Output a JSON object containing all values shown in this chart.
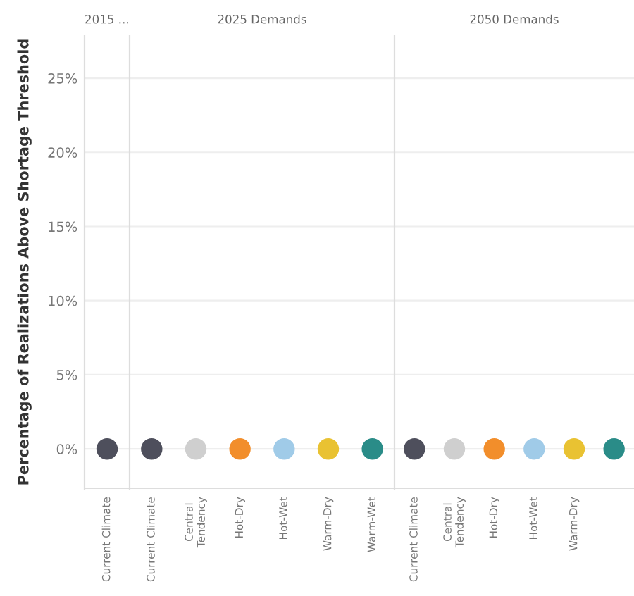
{
  "chart_data": [
    {
      "type": "scatter",
      "title": "2015 ...",
      "ylabel": "Percentage of Realizations Above Shortage Threshold",
      "categories": [
        "Current Climate"
      ],
      "values": [
        0
      ],
      "colors": [
        "#4e4f5c"
      ],
      "ylim": [
        -2.7,
        27.9
      ],
      "yticks": [
        {
          "value": 0,
          "label": "0%"
        },
        {
          "value": 5,
          "label": "5%"
        },
        {
          "value": 10,
          "label": "10%"
        },
        {
          "value": 15,
          "label": "15%"
        },
        {
          "value": 20,
          "label": "20%"
        },
        {
          "value": 25,
          "label": "25%"
        }
      ],
      "grid": "y",
      "marker": "circle"
    },
    {
      "type": "scatter",
      "title": "2025 Demands",
      "categories": [
        "Current Climate",
        "Central\nTendency",
        "Hot-Dry",
        "Hot-Wet",
        "Warm-Dry",
        "Warm-Wet"
      ],
      "values": [
        0,
        0,
        0,
        0,
        0,
        0
      ],
      "colors": [
        "#4e4f5c",
        "#cfcfcf",
        "#f28e2b",
        "#a0cbe8",
        "#e9c232",
        "#2a8c88"
      ],
      "ylim": [
        -2.7,
        27.9
      ],
      "yticks": [
        0,
        5,
        10,
        15,
        20,
        25
      ],
      "grid": "y",
      "marker": "circle",
      "tick_labels": "x"
    },
    {
      "type": "scatter",
      "title": "2050 Demands",
      "categories": [
        "Current Climate",
        "Central\nTendency",
        "Hot-Dry",
        "Hot-Wet",
        "Warm-Dry",
        null
      ],
      "values": [
        0,
        0,
        0,
        0,
        0,
        0
      ],
      "colors": [
        "#4e4f5c",
        "#cfcfcf",
        "#f28e2b",
        "#a0cbe8",
        "#e9c232",
        "#2a8c88"
      ],
      "ylim": [
        -2.7,
        27.9
      ],
      "yticks": [
        0,
        5,
        10,
        15,
        20,
        25
      ],
      "grid": "y",
      "marker": "circle",
      "tick_labels": "x"
    }
  ]
}
